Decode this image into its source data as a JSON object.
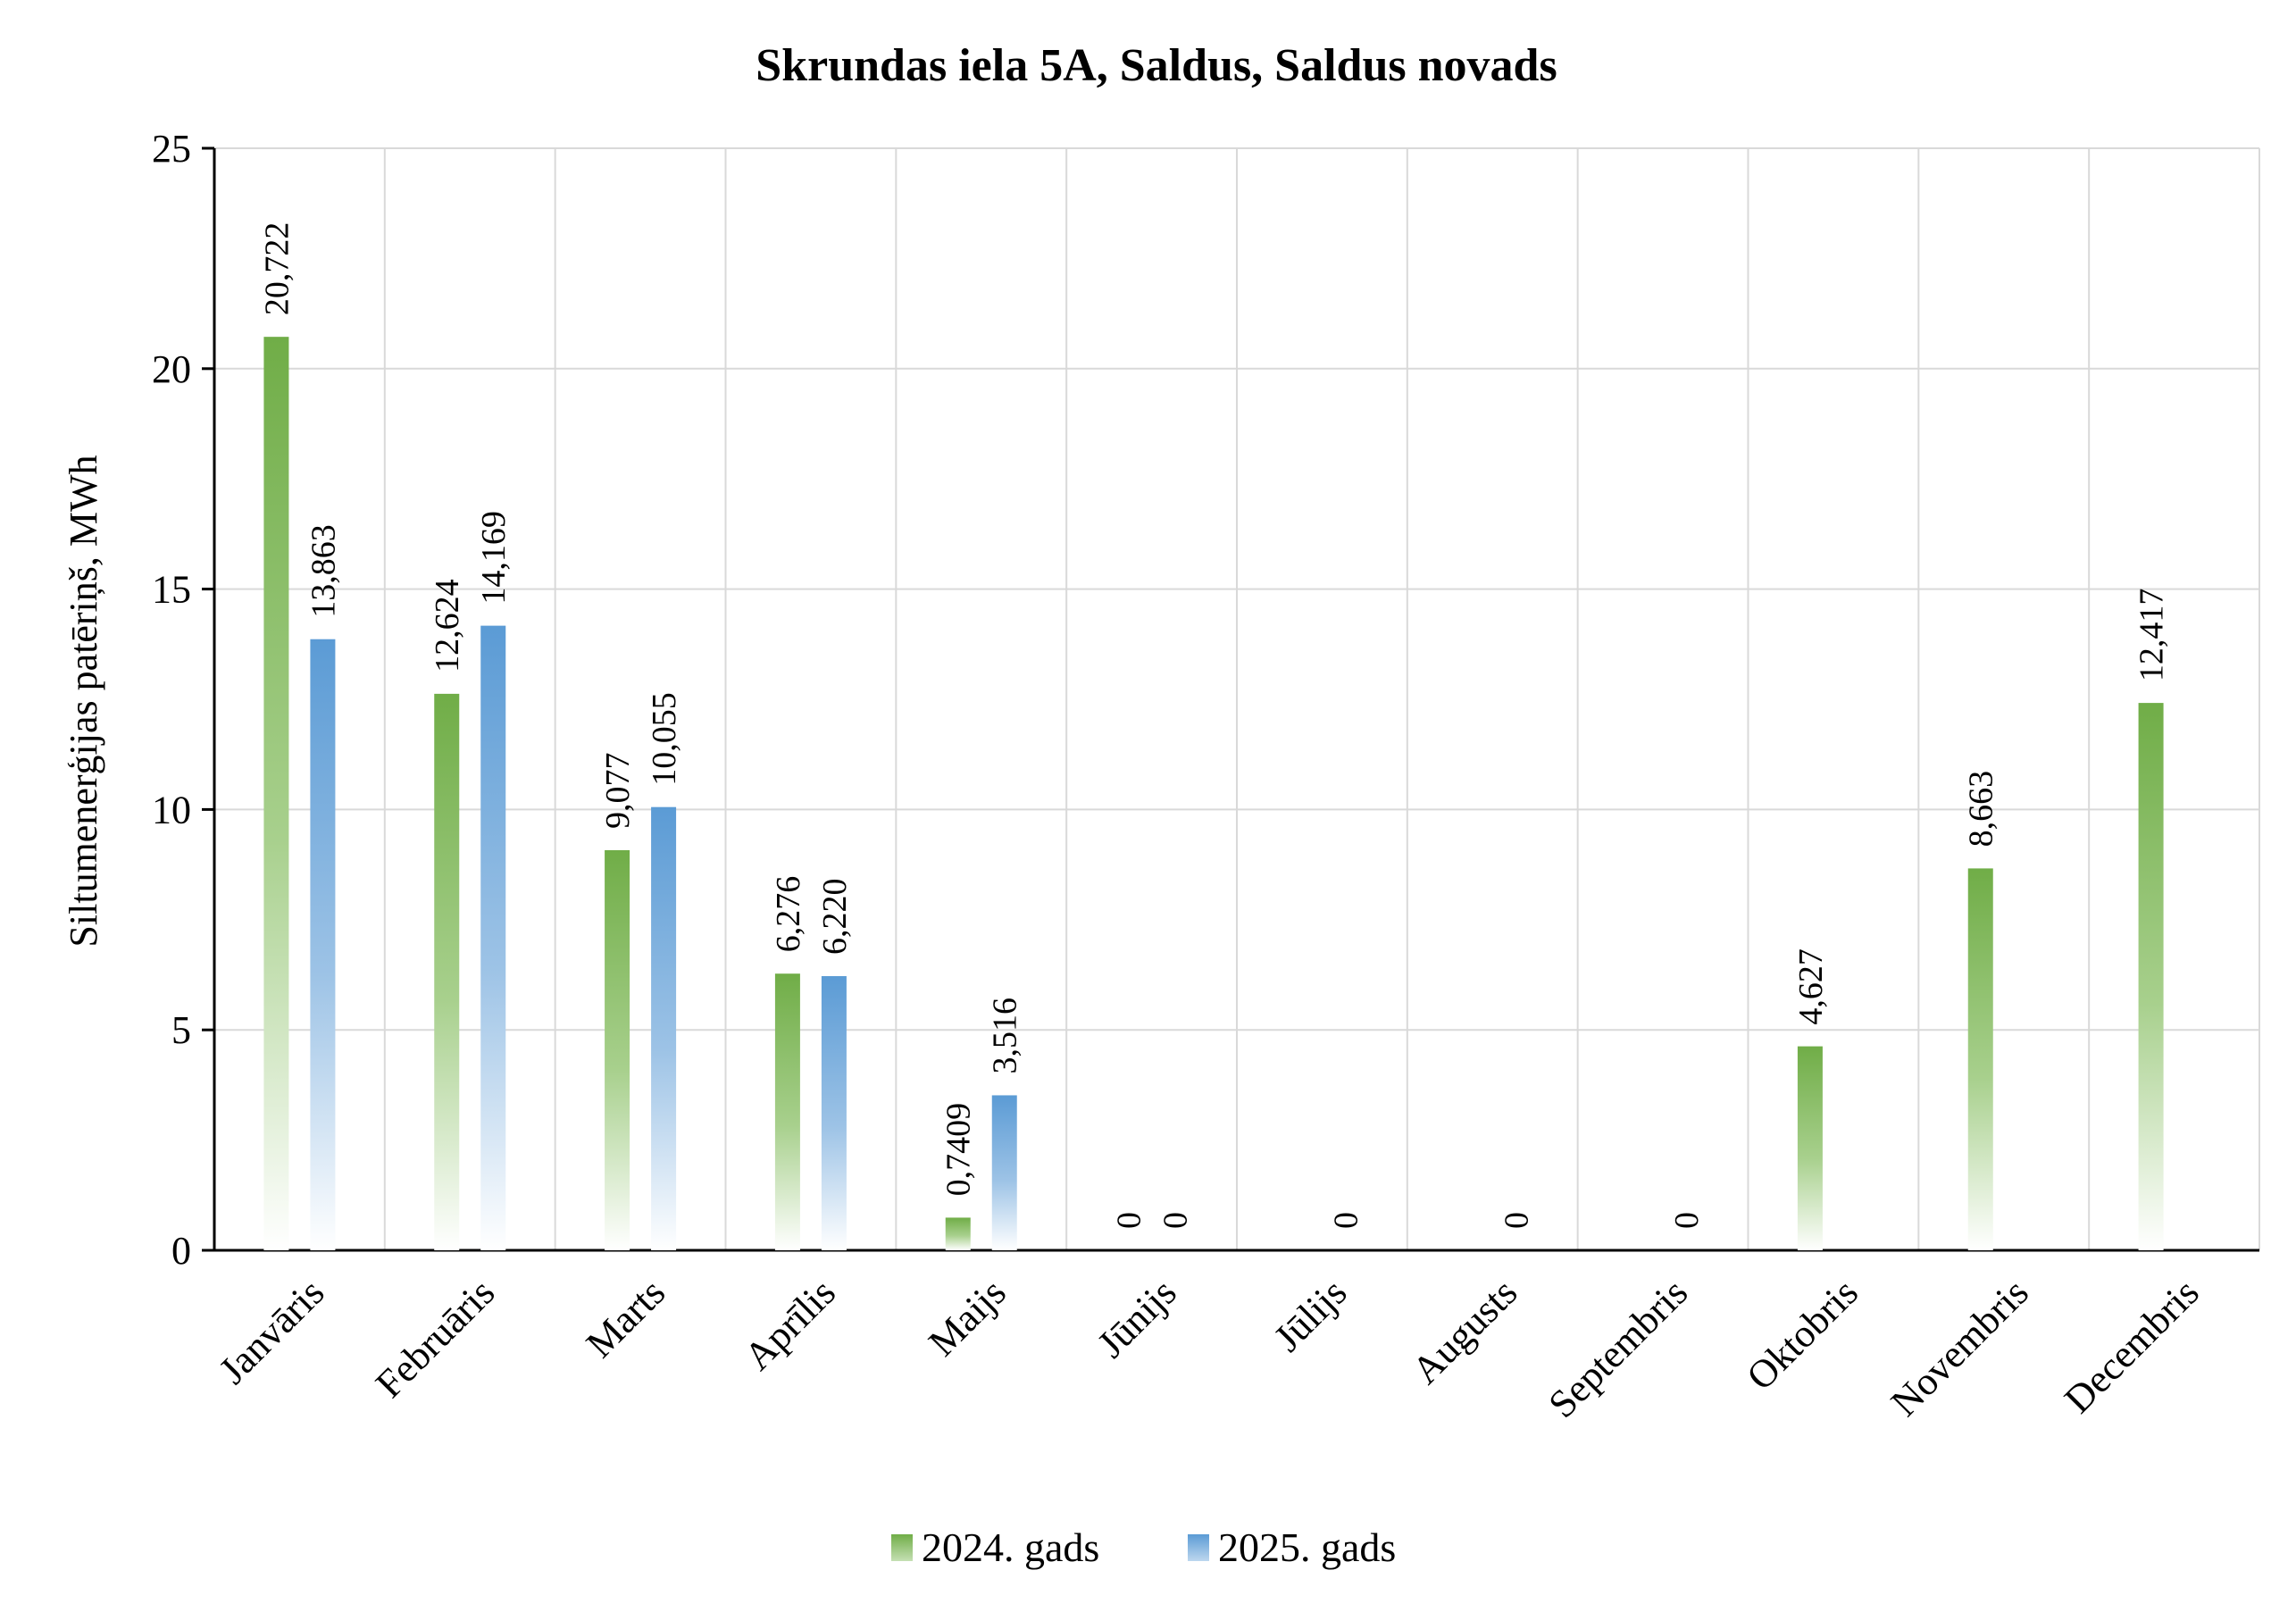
{
  "chart_data": {
    "type": "bar",
    "title": "Skrundas iela 5A, Saldus, Saldus novads",
    "ylabel": "Siltumenerģijas patēriņš, MWh",
    "xlabel": "",
    "ylim": [
      0,
      25
    ],
    "yticks": [
      0,
      5,
      10,
      15,
      20,
      25
    ],
    "grid": true,
    "legend_position": "bottom",
    "categories": [
      "Janvāris",
      "Februāris",
      "Marts",
      "Aprīlis",
      "Maijs",
      "Jūnijs",
      "Jūlijs",
      "Augusts",
      "Septembris",
      "Oktobris",
      "Novembris",
      "Decembris"
    ],
    "series": [
      {
        "name": "2024. gads",
        "color": "#70AD47",
        "values": [
          20.722,
          12.624,
          9.077,
          6.276,
          0.7409,
          0,
          null,
          null,
          null,
          4.627,
          8.663,
          12.417
        ],
        "labels": [
          "20,722",
          "12,624",
          "9,077",
          "6,276",
          "0,7409",
          "0",
          "",
          "",
          "",
          "4,627",
          "8,663",
          "12,417"
        ]
      },
      {
        "name": "2025. gads",
        "color": "#5B9BD5",
        "values": [
          13.863,
          14.169,
          10.055,
          6.22,
          3.516,
          0,
          0,
          0,
          0,
          null,
          null,
          null
        ],
        "labels": [
          "13,863",
          "14,169",
          "10,055",
          "6,220",
          "3,516",
          "0",
          "0",
          "0",
          "0",
          "",
          "",
          ""
        ]
      }
    ]
  }
}
